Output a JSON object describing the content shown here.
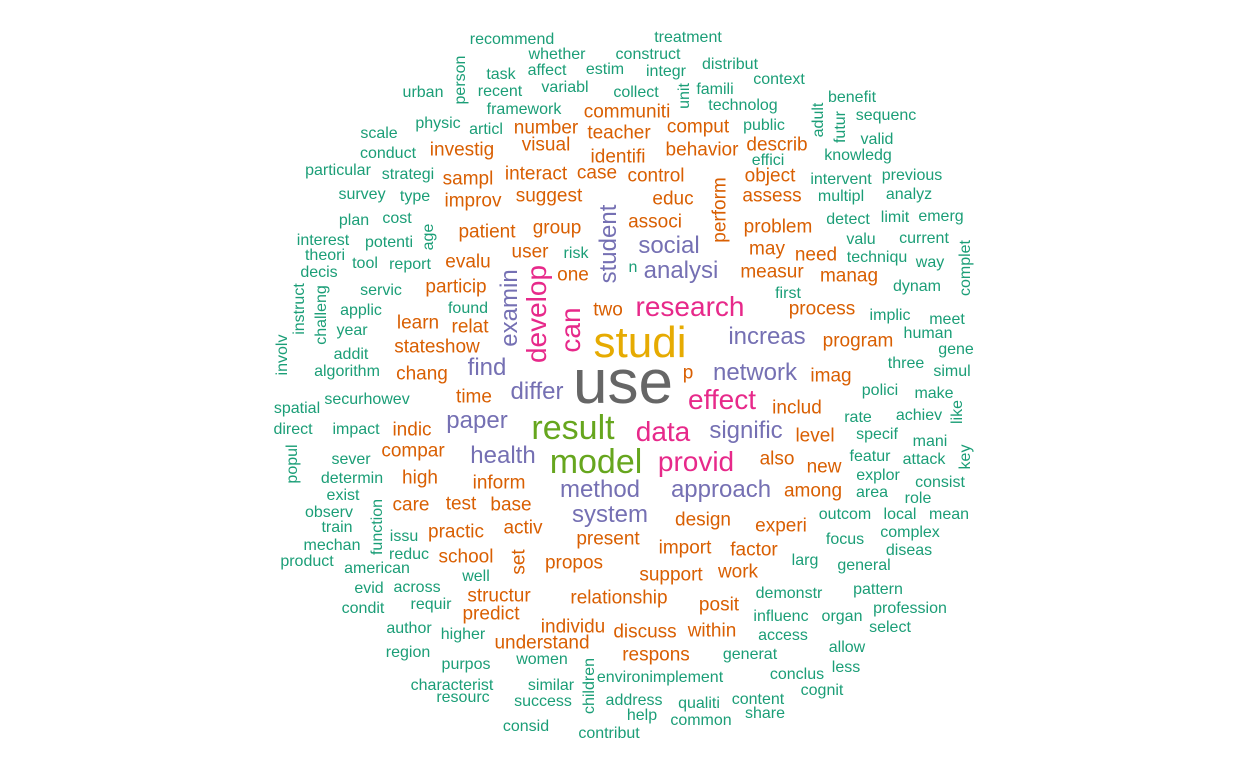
{
  "words": [
    {
      "text": "use",
      "tier": "t7"
    },
    {
      "text": "studi",
      "tier": "t6"
    },
    {
      "text": "result",
      "tier": "t5"
    },
    {
      "text": "model",
      "tier": "t5"
    },
    {
      "text": "data",
      "tier": "t4"
    },
    {
      "text": "research",
      "tier": "t4"
    },
    {
      "text": "develop",
      "tier": "t4",
      "vertical": true
    },
    {
      "text": "can",
      "tier": "t4",
      "vertical": true
    },
    {
      "text": "effect",
      "tier": "t4"
    },
    {
      "text": "provid",
      "tier": "t4"
    },
    {
      "text": "network",
      "tier": "t3"
    },
    {
      "text": "differ",
      "tier": "t3"
    },
    {
      "text": "method",
      "tier": "t3"
    },
    {
      "text": "system",
      "tier": "t3"
    },
    {
      "text": "health",
      "tier": "t3"
    },
    {
      "text": "paper",
      "tier": "t3"
    },
    {
      "text": "approach",
      "tier": "t3"
    },
    {
      "text": "signific",
      "tier": "t3"
    },
    {
      "text": "increas",
      "tier": "t3"
    },
    {
      "text": "analysi",
      "tier": "t3"
    },
    {
      "text": "social",
      "tier": "t3"
    },
    {
      "text": "find",
      "tier": "t3"
    },
    {
      "text": "student",
      "tier": "t3",
      "vertical": true
    },
    {
      "text": "examin",
      "tier": "t3",
      "vertical": true
    },
    {
      "text": "group",
      "tier": "t2"
    },
    {
      "text": "patient",
      "tier": "t2"
    },
    {
      "text": "associ",
      "tier": "t2"
    },
    {
      "text": "perform",
      "tier": "t2",
      "vertical": true
    },
    {
      "text": "suggest",
      "tier": "t2"
    },
    {
      "text": "educ",
      "tier": "t2"
    },
    {
      "text": "control",
      "tier": "t2"
    },
    {
      "text": "identifi",
      "tier": "t2"
    },
    {
      "text": "behavior",
      "tier": "t2"
    },
    {
      "text": "comput",
      "tier": "t2"
    },
    {
      "text": "teacher",
      "tier": "t2"
    },
    {
      "text": "communiti",
      "tier": "t2"
    },
    {
      "text": "number",
      "tier": "t2"
    },
    {
      "text": "visual",
      "tier": "t2"
    },
    {
      "text": "investig",
      "tier": "t2"
    },
    {
      "text": "interact",
      "tier": "t2"
    },
    {
      "text": "case",
      "tier": "t2"
    },
    {
      "text": "sampl",
      "tier": "t2"
    },
    {
      "text": "improv",
      "tier": "t2"
    },
    {
      "text": "user",
      "tier": "t2"
    },
    {
      "text": "risk",
      "tier": "t1"
    },
    {
      "text": "one",
      "tier": "t2"
    },
    {
      "text": "evalu",
      "tier": "t2"
    },
    {
      "text": "particip",
      "tier": "t2"
    },
    {
      "text": "two",
      "tier": "t2"
    },
    {
      "text": "measur",
      "tier": "t2"
    },
    {
      "text": "manag",
      "tier": "t2"
    },
    {
      "text": "may",
      "tier": "t2"
    },
    {
      "text": "need",
      "tier": "t2"
    },
    {
      "text": "problem",
      "tier": "t2"
    },
    {
      "text": "assess",
      "tier": "t2"
    },
    {
      "text": "object",
      "tier": "t2"
    },
    {
      "text": "describ",
      "tier": "t2"
    },
    {
      "text": "process",
      "tier": "t2"
    },
    {
      "text": "first",
      "tier": "t1"
    },
    {
      "text": "program",
      "tier": "t2"
    },
    {
      "text": "imag",
      "tier": "t2"
    },
    {
      "text": "includ",
      "tier": "t2"
    },
    {
      "text": "level",
      "tier": "t2"
    },
    {
      "text": "also",
      "tier": "t2"
    },
    {
      "text": "new",
      "tier": "t2"
    },
    {
      "text": "among",
      "tier": "t2"
    },
    {
      "text": "design",
      "tier": "t2"
    },
    {
      "text": "experi",
      "tier": "t2"
    },
    {
      "text": "factor",
      "tier": "t2"
    },
    {
      "text": "import",
      "tier": "t2"
    },
    {
      "text": "present",
      "tier": "t2"
    },
    {
      "text": "propos",
      "tier": "t2"
    },
    {
      "text": "support",
      "tier": "t2"
    },
    {
      "text": "work",
      "tier": "t2"
    },
    {
      "text": "relationship",
      "tier": "t2"
    },
    {
      "text": "posit",
      "tier": "t2"
    },
    {
      "text": "discuss",
      "tier": "t2"
    },
    {
      "text": "individu",
      "tier": "t2"
    },
    {
      "text": "understand",
      "tier": "t2"
    },
    {
      "text": "respons",
      "tier": "t2"
    },
    {
      "text": "within",
      "tier": "t2"
    },
    {
      "text": "structur",
      "tier": "t2"
    },
    {
      "text": "predict",
      "tier": "t2"
    },
    {
      "text": "school",
      "tier": "t2"
    },
    {
      "text": "practic",
      "tier": "t2"
    },
    {
      "text": "activ",
      "tier": "t2"
    },
    {
      "text": "base",
      "tier": "t2"
    },
    {
      "text": "test",
      "tier": "t2"
    },
    {
      "text": "care",
      "tier": "t2"
    },
    {
      "text": "inform",
      "tier": "t2"
    },
    {
      "text": "high",
      "tier": "t2"
    },
    {
      "text": "compar",
      "tier": "t2"
    },
    {
      "text": "indic",
      "tier": "t2"
    },
    {
      "text": "time",
      "tier": "t2"
    },
    {
      "text": "chang",
      "tier": "t2"
    },
    {
      "text": "stateshow",
      "tier": "t2"
    },
    {
      "text": "relat",
      "tier": "t2"
    },
    {
      "text": "learn",
      "tier": "t2"
    },
    {
      "text": "well",
      "tier": "t1"
    },
    {
      "text": "set",
      "tier": "t2",
      "vertical": true
    },
    {
      "text": "p",
      "tier": "t2"
    },
    {
      "text": "n",
      "tier": "t1"
    },
    {
      "text": "algorithm",
      "tier": "t1"
    },
    {
      "text": "securhowev",
      "tier": "t1"
    },
    {
      "text": "impact",
      "tier": "t1"
    },
    {
      "text": "sever",
      "tier": "t1"
    },
    {
      "text": "determin",
      "tier": "t1"
    },
    {
      "text": "servic",
      "tier": "t1"
    },
    {
      "text": "applic",
      "tier": "t1"
    },
    {
      "text": "year",
      "tier": "t1"
    },
    {
      "text": "addit",
      "tier": "t1"
    },
    {
      "text": "report",
      "tier": "t1"
    },
    {
      "text": "potenti",
      "tier": "t1"
    },
    {
      "text": "cost",
      "tier": "t1"
    },
    {
      "text": "strategi",
      "tier": "t1"
    },
    {
      "text": "rate",
      "tier": "t1"
    },
    {
      "text": "specif",
      "tier": "t1"
    },
    {
      "text": "polici",
      "tier": "t1"
    },
    {
      "text": "three",
      "tier": "t1"
    },
    {
      "text": "implic",
      "tier": "t1"
    },
    {
      "text": "featur",
      "tier": "t1"
    },
    {
      "text": "explor",
      "tier": "t1"
    },
    {
      "text": "outcom",
      "tier": "t1"
    },
    {
      "text": "focus",
      "tier": "t1"
    },
    {
      "text": "larg",
      "tier": "t1"
    },
    {
      "text": "demonstr",
      "tier": "t1"
    },
    {
      "text": "influenc",
      "tier": "t1"
    },
    {
      "text": "detect",
      "tier": "t1"
    },
    {
      "text": "age",
      "tier": "t1",
      "vertical": true
    },
    {
      "text": "recommend",
      "tier": "t1"
    },
    {
      "text": "treatment",
      "tier": "t1"
    },
    {
      "text": "whether",
      "tier": "t1"
    },
    {
      "text": "construct",
      "tier": "t1"
    },
    {
      "text": "distribut",
      "tier": "t1"
    },
    {
      "text": "person",
      "tier": "t1",
      "vertical": true
    },
    {
      "text": "task",
      "tier": "t1"
    },
    {
      "text": "affect",
      "tier": "t1"
    },
    {
      "text": "estim",
      "tier": "t1"
    },
    {
      "text": "integr",
      "tier": "t1"
    },
    {
      "text": "context",
      "tier": "t1"
    },
    {
      "text": "urban",
      "tier": "t1"
    },
    {
      "text": "recent",
      "tier": "t1"
    },
    {
      "text": "variabl",
      "tier": "t1"
    },
    {
      "text": "collect",
      "tier": "t1"
    },
    {
      "text": "unit",
      "tier": "t1",
      "vertical": true
    },
    {
      "text": "famili",
      "tier": "t1"
    },
    {
      "text": "benefit",
      "tier": "t1"
    },
    {
      "text": "framework",
      "tier": "t1"
    },
    {
      "text": "technolog",
      "tier": "t1"
    },
    {
      "text": "adult",
      "tier": "t1",
      "vertical": true
    },
    {
      "text": "sequenc",
      "tier": "t1"
    },
    {
      "text": "physic",
      "tier": "t1"
    },
    {
      "text": "articl",
      "tier": "t1"
    },
    {
      "text": "public",
      "tier": "t1"
    },
    {
      "text": "futur",
      "tier": "t1",
      "vertical": true
    },
    {
      "text": "valid",
      "tier": "t1"
    },
    {
      "text": "scale",
      "tier": "t1"
    },
    {
      "text": "conduct",
      "tier": "t1"
    },
    {
      "text": "effici",
      "tier": "t1"
    },
    {
      "text": "knowledg",
      "tier": "t1"
    },
    {
      "text": "particular",
      "tier": "t1"
    },
    {
      "text": "intervent",
      "tier": "t1"
    },
    {
      "text": "previous",
      "tier": "t1"
    },
    {
      "text": "survey",
      "tier": "t1"
    },
    {
      "text": "type",
      "tier": "t1"
    },
    {
      "text": "multipl",
      "tier": "t1"
    },
    {
      "text": "analyz",
      "tier": "t1"
    },
    {
      "text": "plan",
      "tier": "t1"
    },
    {
      "text": "limit",
      "tier": "t1"
    },
    {
      "text": "emerg",
      "tier": "t1"
    },
    {
      "text": "interest",
      "tier": "t1"
    },
    {
      "text": "valu",
      "tier": "t1"
    },
    {
      "text": "current",
      "tier": "t1"
    },
    {
      "text": "theori",
      "tier": "t1"
    },
    {
      "text": "tool",
      "tier": "t1"
    },
    {
      "text": "techniqu",
      "tier": "t1"
    },
    {
      "text": "way",
      "tier": "t1"
    },
    {
      "text": "complet",
      "tier": "t1",
      "vertical": true
    },
    {
      "text": "decis",
      "tier": "t1"
    },
    {
      "text": "dynam",
      "tier": "t1"
    },
    {
      "text": "instruct",
      "tier": "t1",
      "vertical": true
    },
    {
      "text": "challeng",
      "tier": "t1",
      "vertical": true
    },
    {
      "text": "found",
      "tier": "t1"
    },
    {
      "text": "meet",
      "tier": "t1"
    },
    {
      "text": "human",
      "tier": "t1"
    },
    {
      "text": "involv",
      "tier": "t1",
      "vertical": true
    },
    {
      "text": "gene",
      "tier": "t1"
    },
    {
      "text": "simul",
      "tier": "t1"
    },
    {
      "text": "make",
      "tier": "t1"
    },
    {
      "text": "achiev",
      "tier": "t1"
    },
    {
      "text": "like",
      "tier": "t1",
      "vertical": true
    },
    {
      "text": "spatial",
      "tier": "t1"
    },
    {
      "text": "direct",
      "tier": "t1"
    },
    {
      "text": "mani",
      "tier": "t1"
    },
    {
      "text": "attack",
      "tier": "t1"
    },
    {
      "text": "key",
      "tier": "t1",
      "vertical": true
    },
    {
      "text": "popul",
      "tier": "t1",
      "vertical": true
    },
    {
      "text": "consist",
      "tier": "t1"
    },
    {
      "text": "exist",
      "tier": "t1"
    },
    {
      "text": "area",
      "tier": "t1"
    },
    {
      "text": "role",
      "tier": "t1"
    },
    {
      "text": "observ",
      "tier": "t1"
    },
    {
      "text": "function",
      "tier": "t1",
      "vertical": true
    },
    {
      "text": "local",
      "tier": "t1"
    },
    {
      "text": "mean",
      "tier": "t1"
    },
    {
      "text": "train",
      "tier": "t1"
    },
    {
      "text": "issu",
      "tier": "t1"
    },
    {
      "text": "complex",
      "tier": "t1"
    },
    {
      "text": "mechan",
      "tier": "t1"
    },
    {
      "text": "reduc",
      "tier": "t1"
    },
    {
      "text": "diseas",
      "tier": "t1"
    },
    {
      "text": "product",
      "tier": "t1"
    },
    {
      "text": "american",
      "tier": "t1"
    },
    {
      "text": "general",
      "tier": "t1"
    },
    {
      "text": "evid",
      "tier": "t1"
    },
    {
      "text": "across",
      "tier": "t1"
    },
    {
      "text": "pattern",
      "tier": "t1"
    },
    {
      "text": "condit",
      "tier": "t1"
    },
    {
      "text": "requir",
      "tier": "t1"
    },
    {
      "text": "organ",
      "tier": "t1"
    },
    {
      "text": "profession",
      "tier": "t1"
    },
    {
      "text": "author",
      "tier": "t1"
    },
    {
      "text": "higher",
      "tier": "t1"
    },
    {
      "text": "access",
      "tier": "t1"
    },
    {
      "text": "select",
      "tier": "t1"
    },
    {
      "text": "region",
      "tier": "t1"
    },
    {
      "text": "women",
      "tier": "t1"
    },
    {
      "text": "generat",
      "tier": "t1"
    },
    {
      "text": "allow",
      "tier": "t1"
    },
    {
      "text": "purpos",
      "tier": "t1"
    },
    {
      "text": "conclus",
      "tier": "t1"
    },
    {
      "text": "less",
      "tier": "t1"
    },
    {
      "text": "characterist",
      "tier": "t1"
    },
    {
      "text": "similar",
      "tier": "t1"
    },
    {
      "text": "children",
      "tier": "t1",
      "vertical": true
    },
    {
      "text": "environimplement",
      "tier": "t1"
    },
    {
      "text": "cognit",
      "tier": "t1"
    },
    {
      "text": "resourc",
      "tier": "t1"
    },
    {
      "text": "success",
      "tier": "t1"
    },
    {
      "text": "address",
      "tier": "t1"
    },
    {
      "text": "qualiti",
      "tier": "t1"
    },
    {
      "text": "content",
      "tier": "t1"
    },
    {
      "text": "help",
      "tier": "t1"
    },
    {
      "text": "common",
      "tier": "t1"
    },
    {
      "text": "share",
      "tier": "t1"
    },
    {
      "text": "consid",
      "tier": "t1"
    },
    {
      "text": "contribut",
      "tier": "t1"
    }
  ]
}
